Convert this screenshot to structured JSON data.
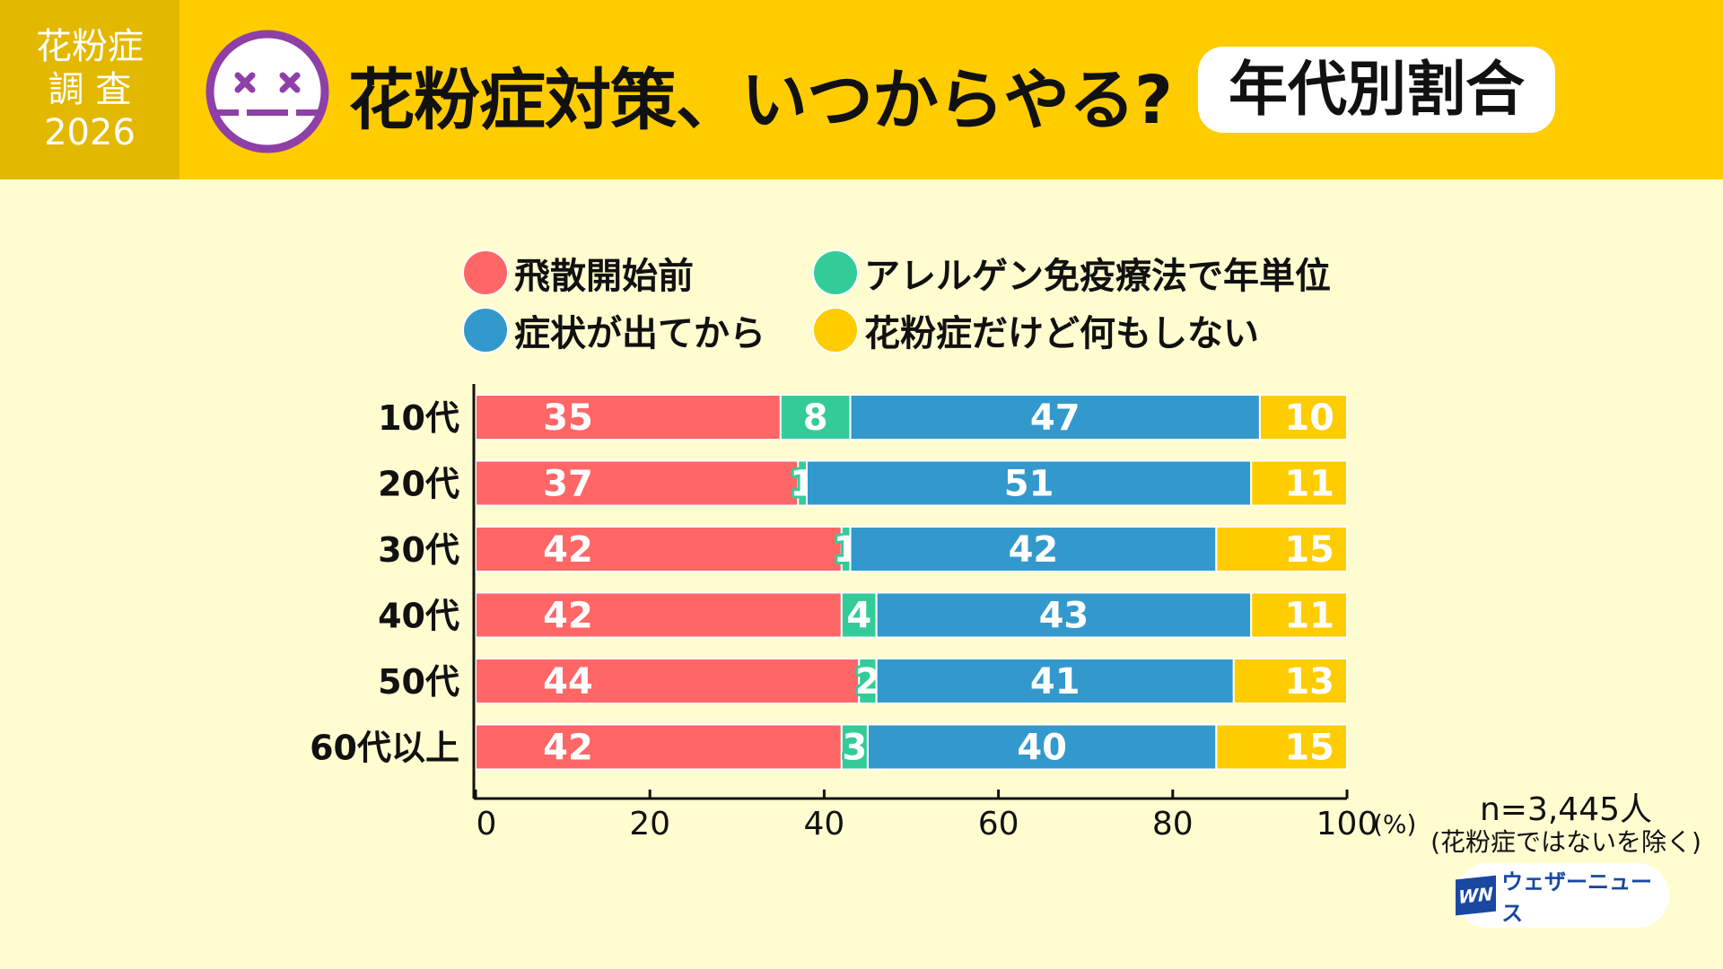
{
  "header": {
    "badge_lines": [
      "花粉症",
      "調 査",
      "2026"
    ],
    "title": "花粉症対策、いつからやる?",
    "pill": "年代別割合",
    "face_icon": "dizzy-face-icon"
  },
  "colors": {
    "header_bg": "#FFCC00",
    "badge_bg": "#E3B800",
    "page_bg": "#FFFDD0",
    "face_purple": "#8E3FA8"
  },
  "chart_data": {
    "type": "bar",
    "orientation": "horizontal",
    "stacked": true,
    "title": "花粉症対策、いつからやる?",
    "subtitle": "年代別割合",
    "categories": [
      "10代",
      "20代",
      "30代",
      "40代",
      "50代",
      "60代以上"
    ],
    "series": [
      {
        "name": "飛散開始前",
        "color": "#FF6666",
        "values": [
          35,
          37,
          42,
          42,
          44,
          42
        ]
      },
      {
        "name": "アレルゲン免疫療法で年単位",
        "color": "#33CC99",
        "values": [
          8,
          1,
          1,
          4,
          2,
          3
        ]
      },
      {
        "name": "症状が出てから",
        "color": "#3399CC",
        "values": [
          47,
          51,
          42,
          43,
          41,
          40
        ]
      },
      {
        "name": "花粉症だけど何もしない",
        "color": "#FFCC00",
        "values": [
          10,
          11,
          15,
          11,
          13,
          15
        ]
      }
    ],
    "xlim": [
      0,
      100
    ],
    "xticks": [
      "0",
      "20",
      "40",
      "60",
      "80",
      "100"
    ],
    "xunit": "(%)",
    "legend_position": "top",
    "grid": false
  },
  "footer": {
    "sample": "n=3,445人",
    "sample_note": "(花粉症ではないを除く)",
    "logo_mark": "WN",
    "logo_text": "ウェザーニュース"
  }
}
